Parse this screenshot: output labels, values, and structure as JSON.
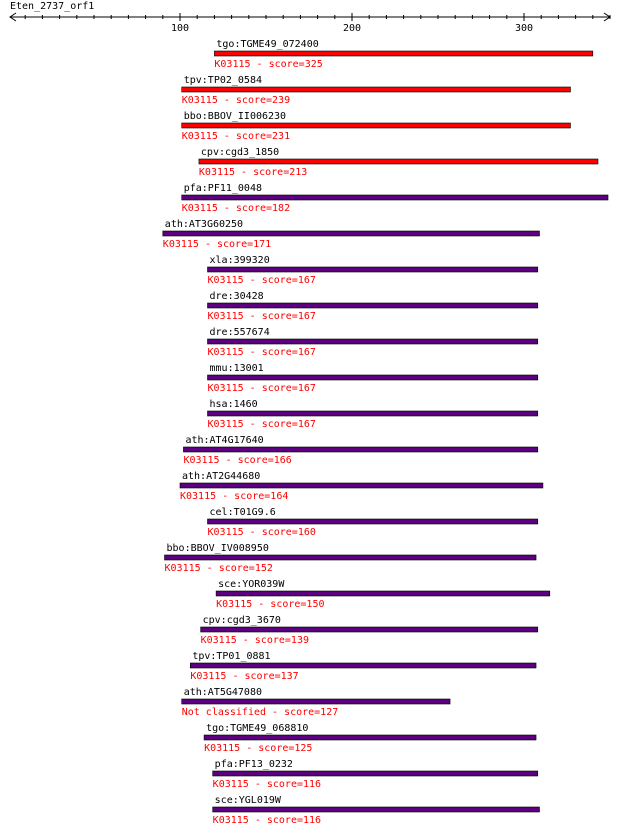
{
  "query": "Eten_2737_orf1",
  "axis": {
    "tick_labels": [
      "100",
      "200",
      "300"
    ]
  },
  "colors": {
    "high": "#ff0000",
    "low": "#5c0080",
    "axis": "#000000",
    "score_text": "#ff0000"
  },
  "hits": [
    {
      "name": "tgo:TGME49_072400",
      "desc": "K03115 - score=325",
      "start": 120,
      "end": 340,
      "color": "high"
    },
    {
      "name": "tpv:TP02_0584",
      "desc": "K03115 - score=239",
      "start": 101,
      "end": 327,
      "color": "high"
    },
    {
      "name": "bbo:BBOV_II006230",
      "desc": "K03115 - score=231",
      "start": 101,
      "end": 327,
      "color": "high"
    },
    {
      "name": "cpv:cgd3_1850",
      "desc": "K03115 - score=213",
      "start": 111,
      "end": 343,
      "color": "high"
    },
    {
      "name": "pfa:PF11_0048",
      "desc": "K03115 - score=182",
      "start": 101,
      "end": 350,
      "color": "low"
    },
    {
      "name": "ath:AT3G60250",
      "desc": "K03115 - score=171",
      "start": 90,
      "end": 309,
      "color": "low"
    },
    {
      "name": "xla:399320",
      "desc": "K03115 - score=167",
      "start": 116,
      "end": 308,
      "color": "low"
    },
    {
      "name": "dre:30428",
      "desc": "K03115 - score=167",
      "start": 116,
      "end": 308,
      "color": "low"
    },
    {
      "name": "dre:557674",
      "desc": "K03115 - score=167",
      "start": 116,
      "end": 308,
      "color": "low"
    },
    {
      "name": "mmu:13001",
      "desc": "K03115 - score=167",
      "start": 116,
      "end": 308,
      "color": "low"
    },
    {
      "name": "hsa:1460",
      "desc": "K03115 - score=167",
      "start": 116,
      "end": 308,
      "color": "low"
    },
    {
      "name": "ath:AT4G17640",
      "desc": "K03115 - score=166",
      "start": 102,
      "end": 308,
      "color": "low"
    },
    {
      "name": "ath:AT2G44680",
      "desc": "K03115 - score=164",
      "start": 100,
      "end": 311,
      "color": "low"
    },
    {
      "name": "cel:T01G9.6",
      "desc": "K03115 - score=160",
      "start": 116,
      "end": 308,
      "color": "low"
    },
    {
      "name": "bbo:BBOV_IV008950",
      "desc": "K03115 - score=152",
      "start": 91,
      "end": 307,
      "color": "low"
    },
    {
      "name": "sce:YOR039W",
      "desc": "K03115 - score=150",
      "start": 121,
      "end": 315,
      "color": "low"
    },
    {
      "name": "cpv:cgd3_3670",
      "desc": "K03115 - score=139",
      "start": 112,
      "end": 308,
      "color": "low"
    },
    {
      "name": "tpv:TP01_0881",
      "desc": "K03115 - score=137",
      "start": 106,
      "end": 307,
      "color": "low"
    },
    {
      "name": "ath:AT5G47080",
      "desc": "Not classified - score=127",
      "start": 101,
      "end": 257,
      "color": "low"
    },
    {
      "name": "tgo:TGME49_068810",
      "desc": "K03115 - score=125",
      "start": 114,
      "end": 307,
      "color": "low"
    },
    {
      "name": "pfa:PF13_0232",
      "desc": "K03115 - score=116",
      "start": 119,
      "end": 308,
      "color": "low"
    },
    {
      "name": "sce:YGL019W",
      "desc": "K03115 - score=116",
      "start": 119,
      "end": 309,
      "color": "low"
    }
  ]
}
